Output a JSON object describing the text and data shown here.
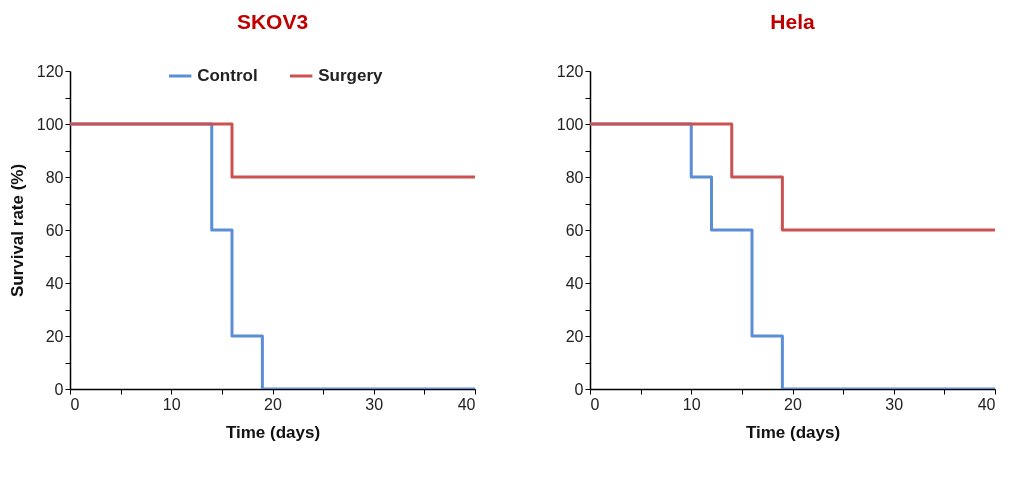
{
  "chart_data": [
    {
      "type": "step",
      "title": "SKOV3",
      "xlabel": "Time (days)",
      "ylabel": "Survival rate (%)",
      "xlim": [
        0,
        40
      ],
      "ylim": [
        0,
        120
      ],
      "xticks": [
        0,
        {
          "value": 5,
          "label": null
        },
        10,
        {
          "value": 15,
          "label": null
        },
        20,
        {
          "value": 25,
          "label": null
        },
        30,
        {
          "value": 35,
          "label": null
        },
        40
      ],
      "yticks": [
        0,
        {
          "value": 10,
          "label": null
        },
        20,
        {
          "value": 30,
          "label": null
        },
        40,
        {
          "value": 50,
          "label": null
        },
        60,
        {
          "value": 70,
          "label": null
        },
        80,
        {
          "value": 90,
          "label": null
        },
        100,
        {
          "value": 110,
          "label": null
        },
        120
      ],
      "legend": "top",
      "series": [
        {
          "name": "Control",
          "color": "#5b8ed6",
          "x": [
            0,
            14,
            16,
            19,
            40
          ],
          "values": [
            100,
            60,
            20,
            0,
            0
          ]
        },
        {
          "name": "Surgery",
          "color": "#cc5252",
          "x": [
            0,
            16,
            40
          ],
          "values": [
            100,
            80,
            80
          ]
        }
      ]
    },
    {
      "type": "step",
      "title": "Hela",
      "xlabel": "Time (days)",
      "xlim": [
        0,
        40
      ],
      "ylim": [
        0,
        120
      ],
      "xticks": [
        0,
        {
          "value": 5,
          "label": null
        },
        10,
        {
          "value": 15,
          "label": null
        },
        20,
        {
          "value": 25,
          "label": null
        },
        30,
        {
          "value": 35,
          "label": null
        },
        40
      ],
      "yticks": [
        0,
        {
          "value": 10,
          "label": null
        },
        20,
        {
          "value": 30,
          "label": null
        },
        40,
        {
          "value": 50,
          "label": null
        },
        60,
        {
          "value": 70,
          "label": null
        },
        80,
        {
          "value": 90,
          "label": null
        },
        100,
        {
          "value": 110,
          "label": null
        },
        120
      ],
      "legend": "top",
      "series": [
        {
          "name": "Control",
          "color": "#5b8ed6",
          "x": [
            0,
            10,
            12,
            16,
            19,
            40
          ],
          "values": [
            100,
            80,
            60,
            20,
            0,
            0
          ]
        },
        {
          "name": "Surgery",
          "color": "#cc5252",
          "x": [
            0,
            14,
            19,
            40
          ],
          "values": [
            100,
            80,
            60,
            60
          ]
        }
      ]
    }
  ]
}
